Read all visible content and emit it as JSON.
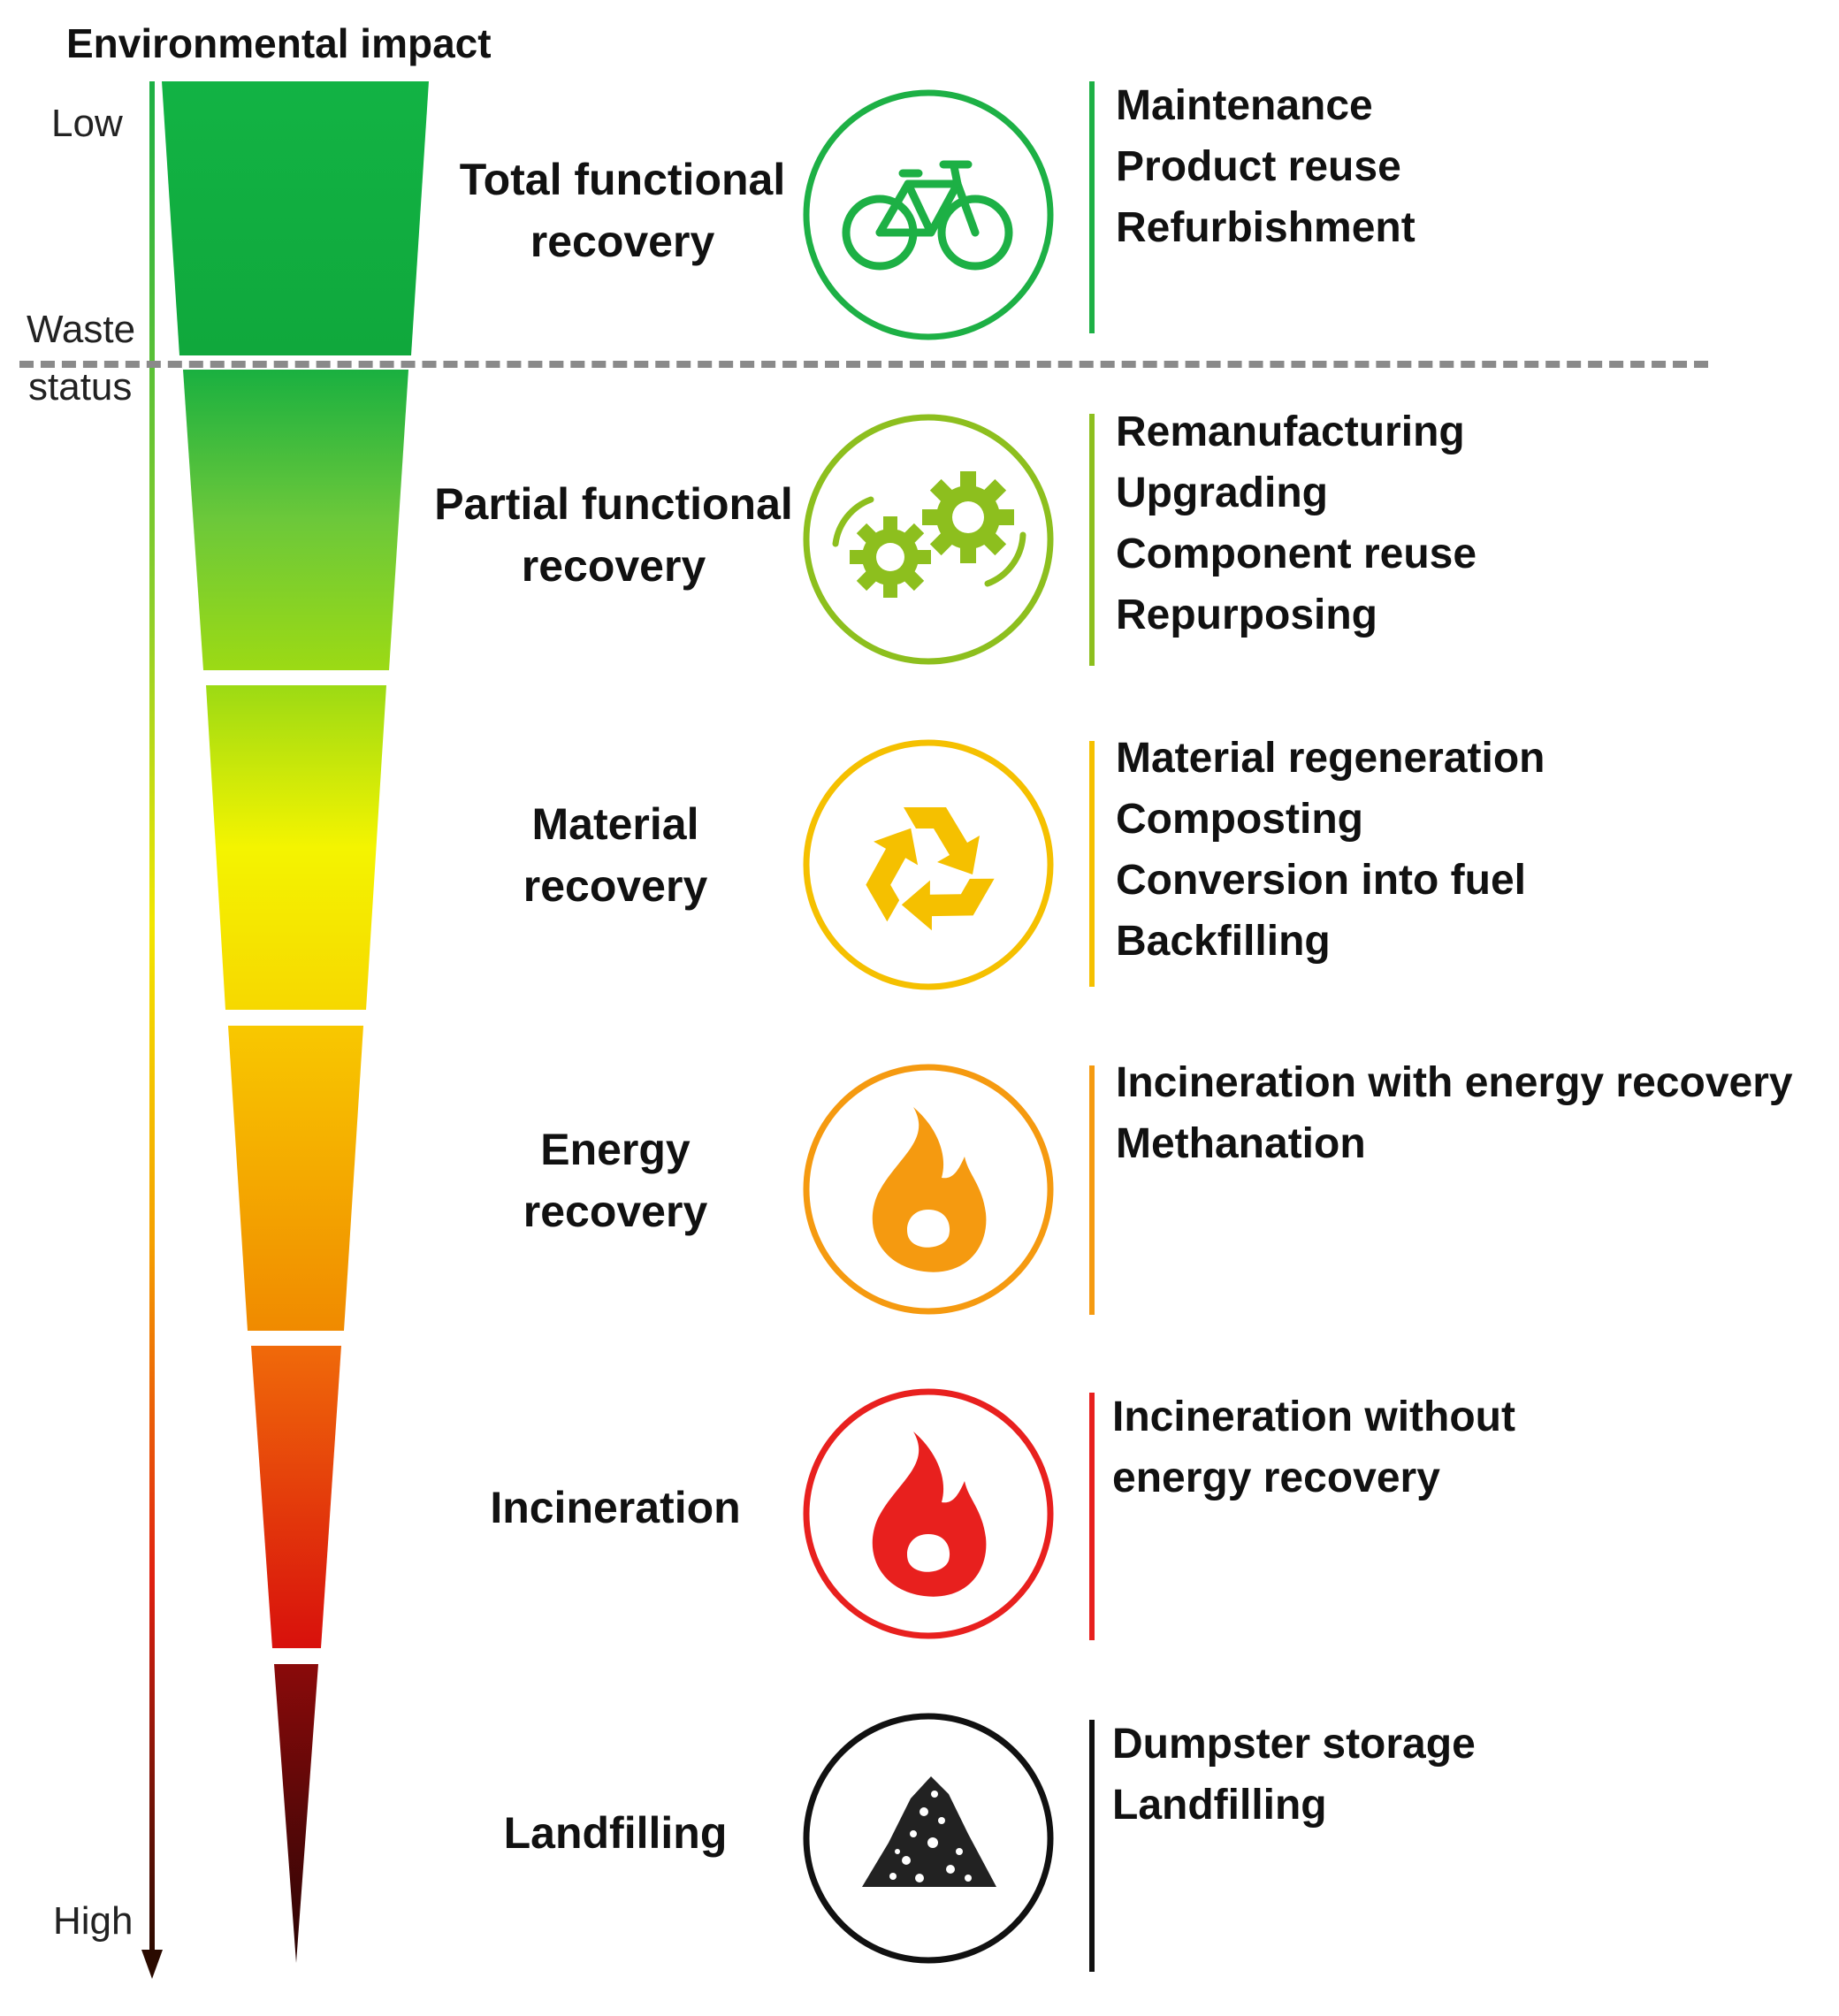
{
  "axis": {
    "title": "Environmental impact",
    "low_label": "Low",
    "high_label": "High",
    "threshold_label_line1": "Waste",
    "threshold_label_line2": "status"
  },
  "stages": [
    {
      "label_lines": [
        "Total functional",
        "recovery"
      ],
      "icon": "bicycle-icon",
      "color": "#1DB045",
      "methods": [
        "Maintenance",
        "Product reuse",
        "Refurbishment"
      ]
    },
    {
      "label_lines": [
        "Partial functional",
        "recovery"
      ],
      "icon": "gears-icon",
      "color": "#8DBF1E",
      "methods": [
        "Remanufacturing",
        "Upgrading",
        "Component reuse",
        "Repurposing"
      ]
    },
    {
      "label_lines": [
        "Material",
        "recovery"
      ],
      "icon": "recycle-icon",
      "color": "#F5C000",
      "methods": [
        "Material regeneration",
        "Composting",
        "Conversion into fuel",
        "Backfilling"
      ]
    },
    {
      "label_lines": [
        "Energy",
        "recovery"
      ],
      "icon": "flame-icon",
      "color": "#F59A10",
      "methods": [
        "Incineration with energy recovery",
        "Methanation"
      ]
    },
    {
      "label_lines": [
        "Incineration"
      ],
      "icon": "flame-icon",
      "color": "#E8201E",
      "methods": [
        "Incineration without",
        "energy recovery"
      ]
    },
    {
      "label_lines": [
        "Landfilling"
      ],
      "icon": "rubble-pile-icon",
      "color": "#111111",
      "methods": [
        "Dumpster storage",
        "Landfilling"
      ]
    }
  ]
}
